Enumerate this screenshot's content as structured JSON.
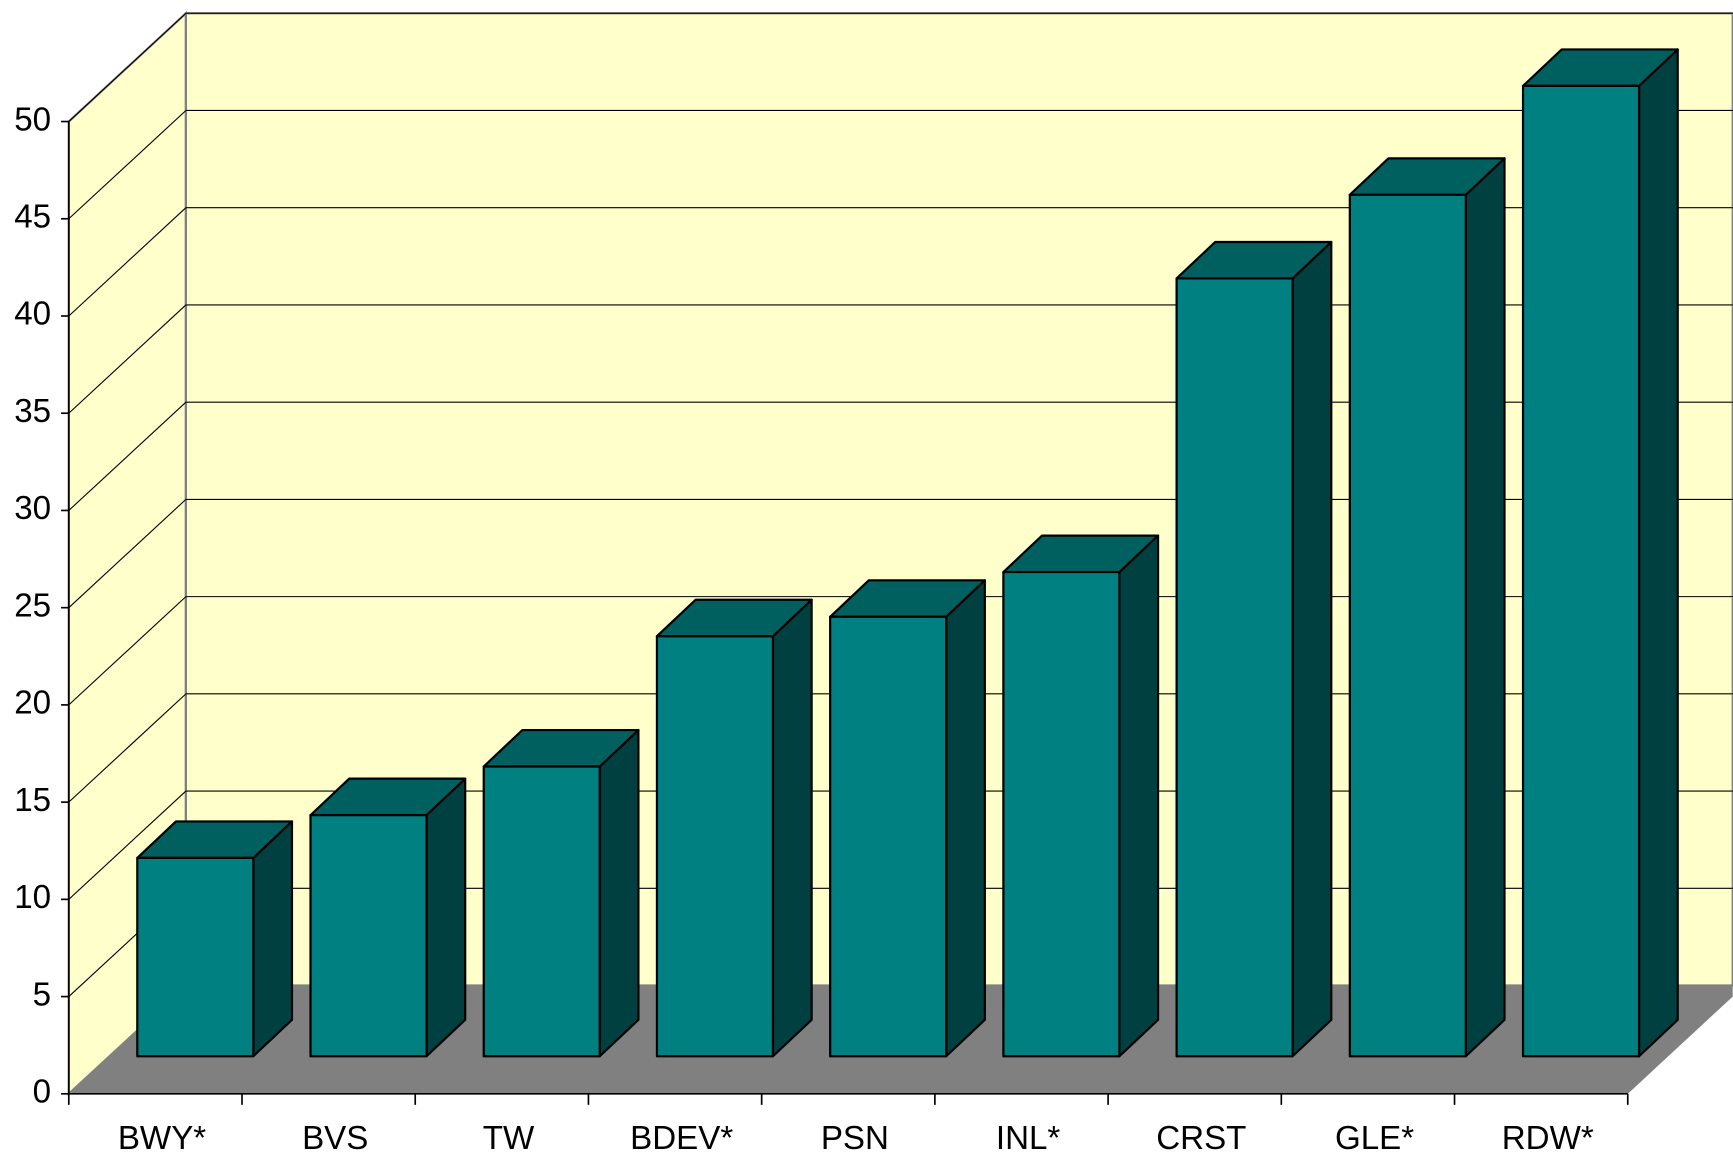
{
  "chart_data": {
    "type": "bar3d",
    "categories": [
      "BWY*",
      "BVS",
      "TW",
      "BDEV*",
      "PSN",
      "INL*",
      "CRST",
      "GLE*",
      "RDW*"
    ],
    "values": [
      10.2,
      12.4,
      14.9,
      21.6,
      22.6,
      24.9,
      40,
      44.3,
      49.9
    ],
    "color": "#008080",
    "ylim": [
      0,
      50
    ],
    "yticks": [
      0,
      5,
      10,
      15,
      20,
      25,
      30,
      35,
      40,
      45,
      50
    ],
    "grid": true
  }
}
